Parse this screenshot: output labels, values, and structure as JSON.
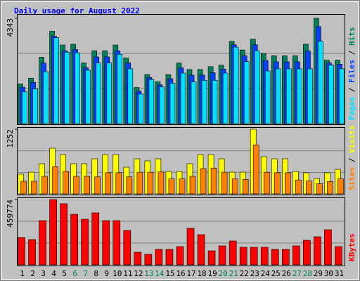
{
  "title": "Daily usage for August 2022",
  "chart_data": [
    {
      "type": "bar",
      "ylim": [
        0,
        4343
      ],
      "yticks": [
        4343
      ],
      "separator": "/",
      "series": [
        {
          "name": "Hits",
          "color": "#00805c",
          "values": [
            1636,
            1874,
            2737,
            3808,
            3243,
            3273,
            2499,
            3005,
            3005,
            3243,
            2707,
            1488,
            2023,
            1726,
            2023,
            2499,
            2231,
            2231,
            2350,
            2410,
            3392,
            3035,
            3481,
            2886,
            2797,
            2797,
            2797,
            3273,
            4343,
            2618,
            2618
          ]
        },
        {
          "name": "Files",
          "color": "#0040ff",
          "values": [
            1500,
            1700,
            2500,
            3600,
            3000,
            3050,
            2300,
            2750,
            2750,
            3000,
            2500,
            1350,
            1900,
            1600,
            1850,
            2300,
            2000,
            2000,
            2100,
            2250,
            3250,
            2800,
            3250,
            2600,
            2550,
            2550,
            2550,
            3000,
            4000,
            2500,
            2450
          ]
        },
        {
          "name": "Pages",
          "color": "#00e0ff",
          "values": [
            1309,
            1428,
            2142,
            3540,
            2945,
            2916,
            2202,
            2499,
            2499,
            2856,
            2261,
            1220,
            1815,
            1517,
            1666,
            2083,
            1726,
            1785,
            1785,
            2083,
            3154,
            2559,
            3005,
            2172,
            2261,
            2261,
            2261,
            2261,
            3392,
            2410,
            2261
          ]
        }
      ]
    },
    {
      "type": "bar",
      "ylim": [
        0,
        1252
      ],
      "yticks": [
        1252
      ],
      "separator": "/",
      "series": [
        {
          "name": "Visits",
          "color": "#ffff00",
          "values": [
            381,
            422,
            585,
            885,
            762,
            585,
            585,
            680,
            762,
            762,
            517,
            680,
            640,
            680,
            435,
            435,
            585,
            762,
            762,
            680,
            422,
            422,
            1252,
            721,
            680,
            680,
            435,
            408,
            299,
            408,
            476
          ]
        },
        {
          "name": "Sites",
          "color": "#ff8000",
          "values": [
            245,
            245,
            340,
            530,
            435,
            340,
            340,
            330,
            410,
            410,
            330,
            420,
            420,
            425,
            290,
            290,
            340,
            490,
            500,
            420,
            290,
            280,
            950,
            420,
            410,
            410,
            270,
            250,
            200,
            240,
            290
          ]
        }
      ]
    },
    {
      "type": "bar",
      "ylim": [
        0,
        459774
      ],
      "yticks": [
        459774
      ],
      "categories": [
        "1",
        "2",
        "3",
        "4",
        "5",
        "6",
        "7",
        "8",
        "9",
        "10",
        "11",
        "12",
        "13",
        "14",
        "15",
        "16",
        "17",
        "18",
        "19",
        "20",
        "21",
        "22",
        "23",
        "24",
        "25",
        "26",
        "27",
        "28",
        "29",
        "30",
        "31"
      ],
      "category_colors": [
        "#000",
        "#000",
        "#000",
        "#000",
        "#000",
        "#00805c",
        "#00805c",
        "#000",
        "#000",
        "#000",
        "#000",
        "#000",
        "#00805c",
        "#00805c",
        "#000",
        "#000",
        "#000",
        "#000",
        "#000",
        "#00805c",
        "#00805c",
        "#000",
        "#000",
        "#000",
        "#000",
        "#000",
        "#00805c",
        "#00805c",
        "#000",
        "#000",
        "#000"
      ],
      "series": [
        {
          "name": "KBytes",
          "color": "#ff0000",
          "values": [
            192800,
            178000,
            311500,
            459774,
            430100,
            356000,
            321400,
            365900,
            311500,
            311500,
            242300,
            89000,
            74200,
            108800,
            108800,
            128500,
            257100,
            212600,
            98900,
            133500,
            168100,
            123600,
            123600,
            123600,
            108800,
            108800,
            133500,
            173000,
            197800,
            247200,
            128500
          ]
        }
      ]
    }
  ]
}
